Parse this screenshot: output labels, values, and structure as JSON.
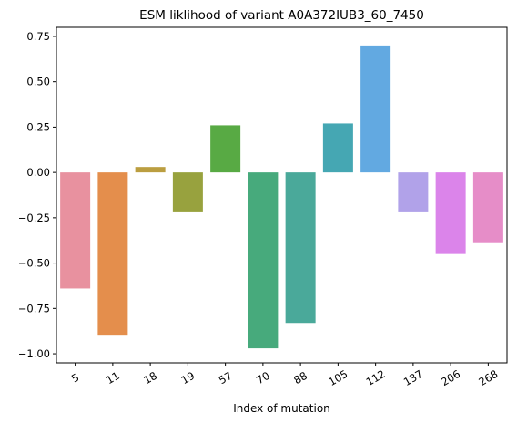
{
  "chart_data": {
    "type": "bar",
    "title": "ESM liklihood of variant A0A372IUB3_60_7450",
    "xlabel": "Index of mutation",
    "ylabel": "",
    "categories": [
      "5",
      "11",
      "18",
      "19",
      "57",
      "70",
      "88",
      "105",
      "112",
      "137",
      "206",
      "268"
    ],
    "values": [
      -0.64,
      -0.9,
      0.03,
      -0.22,
      0.26,
      -0.97,
      -0.83,
      0.27,
      0.7,
      -0.22,
      -0.45,
      -0.39
    ],
    "colors": [
      "#E8919F",
      "#E48E4C",
      "#BB9E40",
      "#98A23E",
      "#58AA44",
      "#47AA7C",
      "#4AA99A",
      "#45A7B3",
      "#62A9E1",
      "#B1A2E9",
      "#DB84EA",
      "#E68DC8"
    ],
    "ylim": [
      -1.05,
      0.8
    ],
    "yticks": [
      -1.0,
      -0.75,
      -0.5,
      -0.25,
      0.0,
      0.25,
      0.5,
      0.75
    ],
    "ytick_labels": [
      "−1.00",
      "−0.75",
      "−0.50",
      "−0.25",
      "0.00",
      "0.25",
      "0.50",
      "0.75"
    ],
    "grid": false,
    "legend": "none"
  }
}
